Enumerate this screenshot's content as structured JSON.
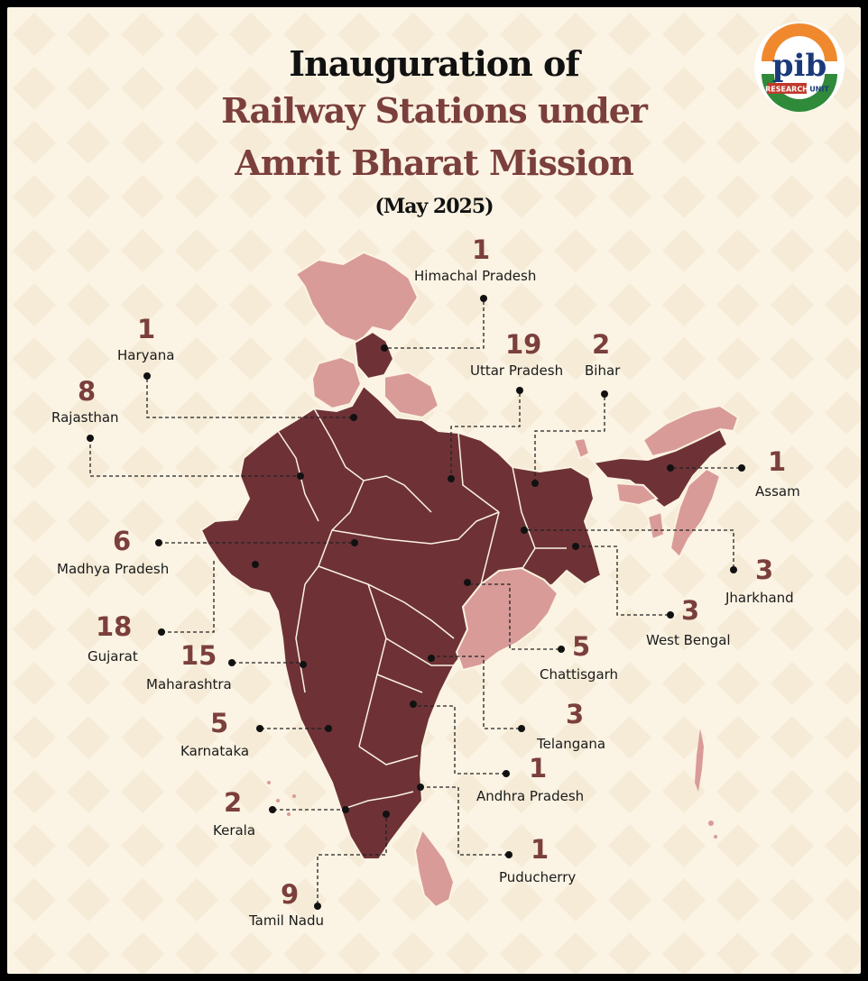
{
  "title": {
    "line1": "Inauguration of",
    "line2": "Railway Stations under",
    "line3": "Amrit Bharat Mission",
    "line4": "(May 2025)"
  },
  "logo": {
    "text": "pib",
    "subtext_research": "RESEARCH",
    "subtext_unit": "UNIT"
  },
  "colors": {
    "background": "#fbf3e3",
    "highlighted_state": "#6e3236",
    "other_state": "#d99b98",
    "accent_text": "#7b3f3c",
    "saffron": "#f0892d",
    "green": "#2f8a3a"
  },
  "states": [
    {
      "name": "Himachal Pradesh",
      "count": "1"
    },
    {
      "name": "Haryana",
      "count": "1"
    },
    {
      "name": "Uttar Pradesh",
      "count": "19"
    },
    {
      "name": "Bihar",
      "count": "2"
    },
    {
      "name": "Rajasthan",
      "count": "8"
    },
    {
      "name": "Assam",
      "count": "1"
    },
    {
      "name": "Madhya Pradesh",
      "count": "6"
    },
    {
      "name": "Jharkhand",
      "count": "3"
    },
    {
      "name": "West Bengal",
      "count": "3"
    },
    {
      "name": "Gujarat",
      "count": "18"
    },
    {
      "name": "Maharashtra",
      "count": "15"
    },
    {
      "name": "Chattisgarh",
      "count": "5"
    },
    {
      "name": "Telangana",
      "count": "3"
    },
    {
      "name": "Karnataka",
      "count": "5"
    },
    {
      "name": "Andhra Pradesh",
      "count": "1"
    },
    {
      "name": "Kerala",
      "count": "2"
    },
    {
      "name": "Puducherry",
      "count": "1"
    },
    {
      "name": "Tamil Nadu",
      "count": "9"
    }
  ]
}
